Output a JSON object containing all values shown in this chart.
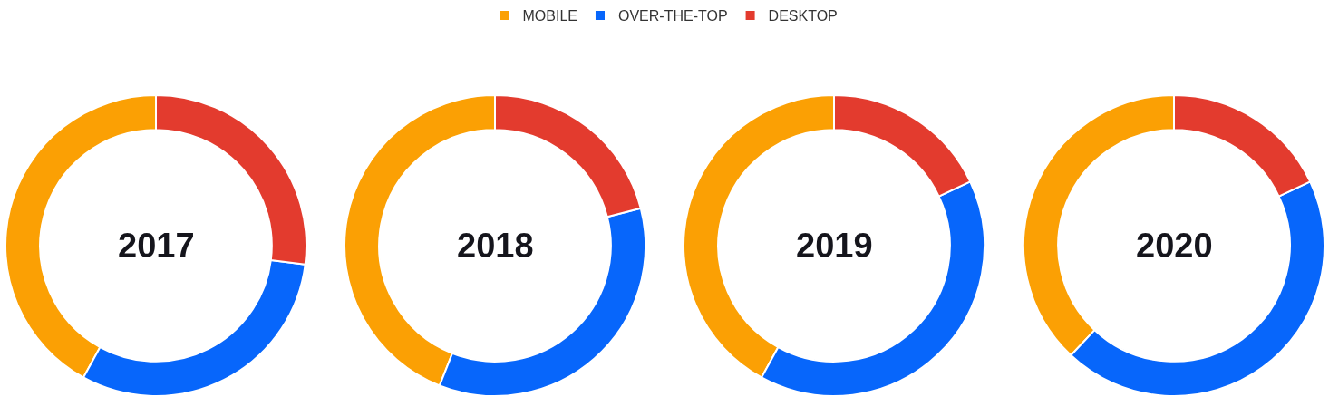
{
  "chart_data": {
    "type": "donut",
    "categories": [
      "MOBILE",
      "OVER-THE-TOP",
      "DESKTOP"
    ],
    "colors": [
      "#fba004",
      "#0766fb",
      "#e33b2e"
    ],
    "legend": "top",
    "series": [
      {
        "name": "2017",
        "values": [
          42,
          31,
          27
        ]
      },
      {
        "name": "2018",
        "values": [
          44,
          35,
          21
        ]
      },
      {
        "name": "2019",
        "values": [
          42,
          40,
          18
        ]
      },
      {
        "name": "2020",
        "values": [
          38,
          44,
          18
        ]
      }
    ]
  }
}
